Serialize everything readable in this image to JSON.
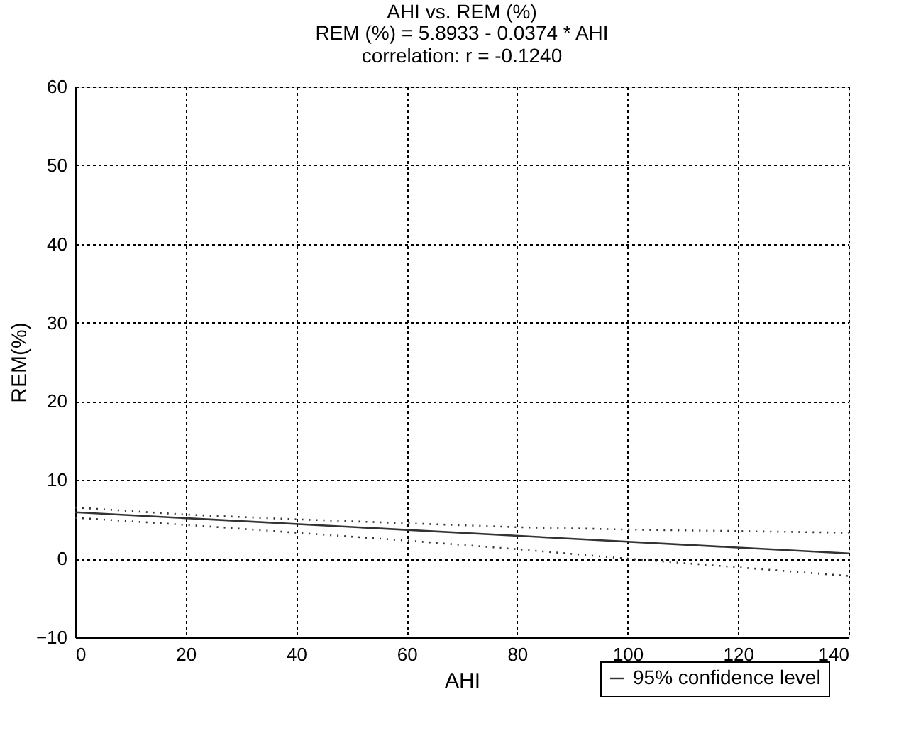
{
  "chart_data": {
    "type": "line",
    "title": "AHI vs. REM (%)",
    "subtitle": "REM (%) = 5.8933 - 0.0374  * AHI\ncorrelation: r = -0.1240",
    "xlabel": "AHI",
    "ylabel": "REM(%)",
    "xlim": [
      0,
      140
    ],
    "xticks": [
      0,
      20,
      40,
      60,
      80,
      100,
      120,
      140
    ],
    "ylim": [
      -10,
      60
    ],
    "yticks": [
      -10,
      0,
      10,
      20,
      30,
      40,
      50,
      60
    ],
    "grid": true,
    "legend": "bottom right",
    "marker": "none",
    "series": [
      {
        "color": "#333333",
        "line_style": "solid",
        "x": [
          0,
          140
        ],
        "values": [
          5.9,
          0.66
        ]
      },
      {
        "name": "95% confidence level",
        "color": "#333333",
        "line_style": "dotted",
        "x": [
          0,
          20,
          40,
          60,
          80,
          100,
          120,
          140
        ],
        "values": [
          6.5,
          5.6,
          5.0,
          4.5,
          4.0,
          3.7,
          3.5,
          3.3
        ]
      },
      {
        "color": "#333333",
        "line_style": "dotted",
        "x": [
          0,
          20,
          40,
          60,
          80,
          100,
          120,
          140
        ],
        "values": [
          5.2,
          4.3,
          3.3,
          2.3,
          1.2,
          0.0,
          -1.1,
          -2.2
        ]
      }
    ]
  }
}
